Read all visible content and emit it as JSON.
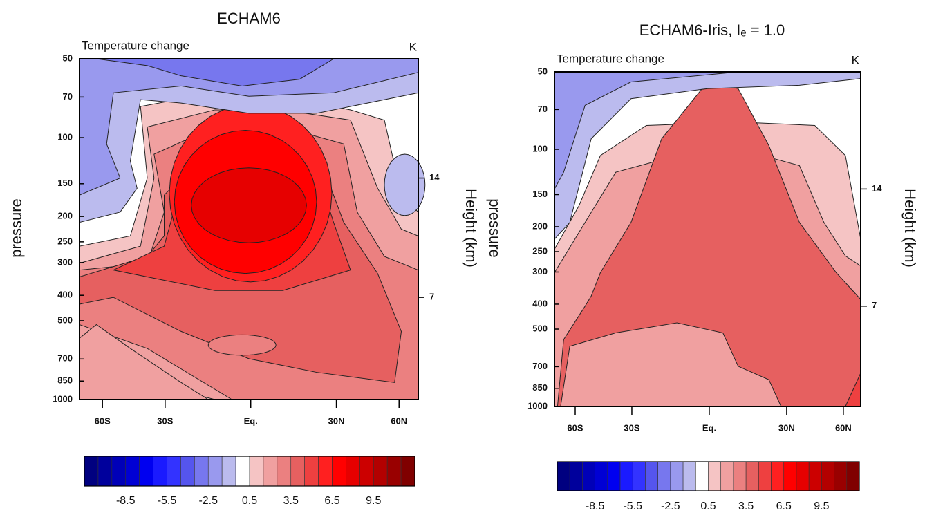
{
  "chart_data": [
    {
      "type": "contour",
      "title": "ECHAM6",
      "subtitle": "Temperature change",
      "unit": "K",
      "ylabel": "pressure",
      "y2label": "Height (km)",
      "xlim": [
        -90,
        78
      ],
      "xscale": "sine",
      "xticks": [
        {
          "value": -60,
          "label": "60S"
        },
        {
          "value": -30,
          "label": "30S"
        },
        {
          "value": 0,
          "label": "Eq."
        },
        {
          "value": 30,
          "label": "30N"
        },
        {
          "value": 60,
          "label": "60N"
        }
      ],
      "ylim": [
        1000,
        50
      ],
      "ylog": true,
      "yticks": [
        50,
        70,
        100,
        150,
        200,
        250,
        300,
        400,
        500,
        700,
        850,
        1000
      ],
      "y2lim": [
        1,
        21
      ],
      "y2ticks": [
        7,
        14
      ],
      "colorbar": {
        "lim": [
          -11.5,
          12.5
        ],
        "ticks": [
          -8.5,
          -5.5,
          -2.5,
          0.5,
          3.5,
          6.5,
          9.5
        ],
        "colors": [
          "#000080",
          "#00009c",
          "#0000b8",
          "#0000d4",
          "#0000f0",
          "#1a1aff",
          "#3333ff",
          "#5555ee",
          "#7777ee",
          "#9999ee",
          "#bbbbee",
          "#ffffff",
          "#f5c4c4",
          "#f0a0a0",
          "#eb8080",
          "#e66060",
          "#ee4040",
          "#ff2020",
          "#ff0000",
          "#e60000",
          "#cc0000",
          "#b30000",
          "#990000",
          "#800000"
        ]
      }
    },
    {
      "type": "contour",
      "title": "ECHAM6-Iris, Iₑ = 1.0",
      "subtitle": "Temperature change",
      "unit": "K",
      "ylabel": "pressure",
      "y2label": "Height (km)",
      "xlim": [
        -90,
        78
      ],
      "xscale": "sine",
      "xticks": [
        {
          "value": -60,
          "label": "60S"
        },
        {
          "value": -30,
          "label": "30S"
        },
        {
          "value": 0,
          "label": "Eq."
        },
        {
          "value": 30,
          "label": "30N"
        },
        {
          "value": 60,
          "label": "60N"
        }
      ],
      "ylim": [
        1000,
        50
      ],
      "ylog": true,
      "yticks": [
        50,
        70,
        100,
        150,
        200,
        250,
        300,
        400,
        500,
        700,
        850,
        1000
      ],
      "y2lim": [
        1,
        21
      ],
      "y2ticks": [
        7,
        14
      ],
      "colorbar": {
        "lim": [
          -11.5,
          12.5
        ],
        "ticks": [
          -8.5,
          -5.5,
          -2.5,
          0.5,
          3.5,
          6.5,
          9.5
        ],
        "colors": [
          "#000080",
          "#00009c",
          "#0000b8",
          "#0000d4",
          "#0000f0",
          "#1a1aff",
          "#3333ff",
          "#5555ee",
          "#7777ee",
          "#9999ee",
          "#bbbbee",
          "#ffffff",
          "#f5c4c4",
          "#f0a0a0",
          "#eb8080",
          "#e66060",
          "#ee4040",
          "#ff2020",
          "#ff0000",
          "#e60000",
          "#cc0000",
          "#b30000",
          "#990000",
          "#800000"
        ]
      }
    }
  ]
}
